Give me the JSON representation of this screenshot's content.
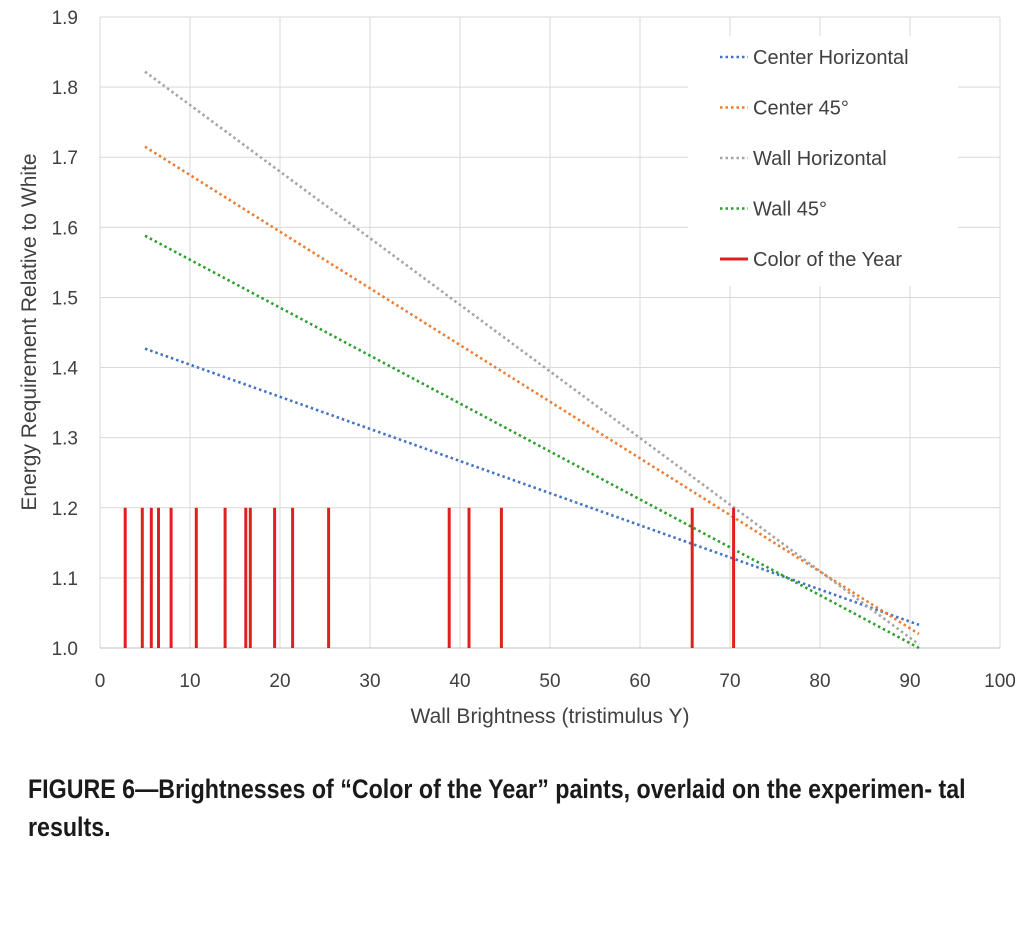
{
  "caption": "FIGURE 6—Brightnesses of “Color of the Year” paints, overlaid on the experimen- tal results.",
  "chart_data": {
    "type": "line",
    "title": "",
    "xlabel": "Wall Brightness (tristimulus Y)",
    "ylabel": "Energy Requirement Relative to White",
    "xlim": [
      0,
      100
    ],
    "ylim": [
      1.0,
      1.9
    ],
    "x_ticks": [
      0,
      10,
      20,
      30,
      40,
      50,
      60,
      70,
      80,
      90,
      100
    ],
    "y_ticks": [
      1.0,
      1.1,
      1.2,
      1.3,
      1.4,
      1.5,
      1.6,
      1.7,
      1.8,
      1.9
    ],
    "y_tick_labels": [
      "1.0",
      "1.1",
      "1.2",
      "1.3",
      "1.4",
      "1.5",
      "1.6",
      "1.7",
      "1.8",
      "1.9"
    ],
    "grid": true,
    "legend_position": "top-right",
    "series": [
      {
        "name": "Center Horizontal",
        "style": "dotted",
        "color": "#4472C4",
        "x": [
          5,
          91
        ],
        "y": [
          1.427,
          1.033
        ]
      },
      {
        "name": "Center 45°",
        "style": "dotted",
        "color": "#ED7D31",
        "x": [
          5,
          91
        ],
        "y": [
          1.715,
          1.02
        ]
      },
      {
        "name": "Wall Horizontal",
        "style": "dotted",
        "color": "#A5A5A5",
        "x": [
          5,
          91
        ],
        "y": [
          1.822,
          1.005
        ]
      },
      {
        "name": "Wall 45°",
        "style": "dotted",
        "color": "#2CA02C",
        "x": [
          5,
          91
        ],
        "y": [
          1.588,
          1.0
        ]
      },
      {
        "name": "Color of the Year",
        "style": "solid",
        "color": "#E02020",
        "type": "vertical_bars",
        "bar_top": 1.2,
        "x": [
          2.8,
          4.7,
          5.7,
          6.5,
          7.9,
          10.7,
          13.9,
          16.2,
          16.7,
          19.4,
          21.4,
          25.4,
          38.8,
          41.0,
          44.6,
          65.8,
          70.4
        ]
      }
    ]
  }
}
